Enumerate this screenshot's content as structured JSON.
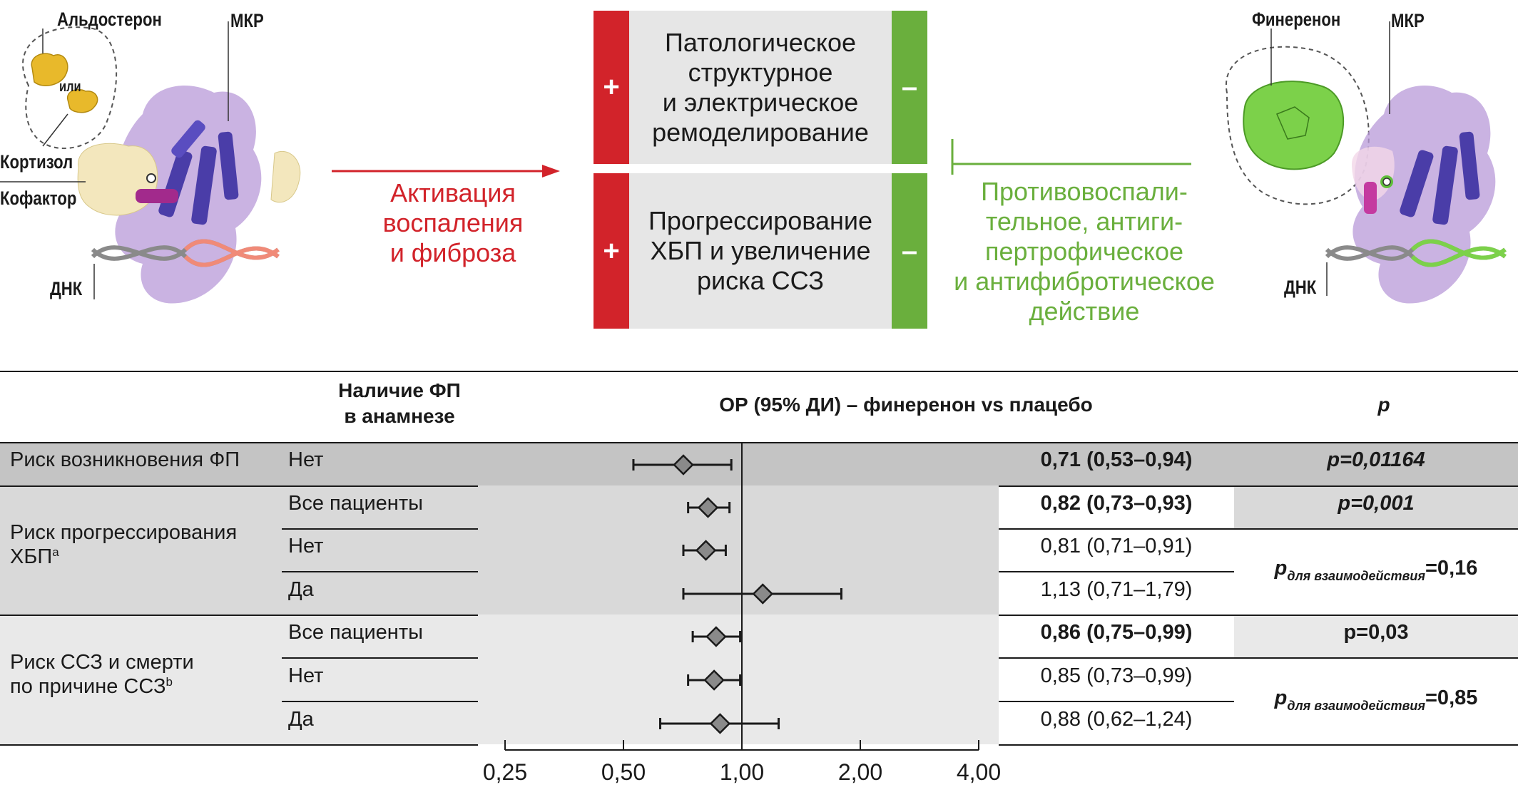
{
  "mechanism": {
    "left_labels": {
      "aldosterone": "Альдостерон",
      "or": "или",
      "cortisol": "Кортизол",
      "cofactor": "Кофактор",
      "dna": "ДНК",
      "mr": "МКР"
    },
    "right_labels": {
      "finerenone": "Финеренон",
      "mr": "МКР",
      "dna": "ДНК"
    },
    "activation_text": "Активация\nвоспаления\nи фиброза",
    "box_top": "Патологическое\nструктурное\nи электрическое\nремоделирование",
    "box_bottom": "Прогрессирование\nХБП и увеличение\nриска ССЗ",
    "plus_sign": "+",
    "minus_sign": "–",
    "inhibition_text": "Противовоспали-\nтельное, антиги-\nпертрофическое\nи антифибротическое\nдействие"
  },
  "table": {
    "header_history": "Наличие ФП\nв анамнезе",
    "header_or": "ОР (95% ДИ) – финеренон vs плацебо",
    "header_p": "p",
    "groups": [
      {
        "label": "Риск возникновения ФП",
        "sup": "",
        "rows": [
          {
            "subgroup": "Нет",
            "or_text": "0,71 (0,53–0,94)",
            "bold": true
          }
        ],
        "p_text": "p=0,01164"
      },
      {
        "label": "Риск прогрессирования\nХБП",
        "sup": "a",
        "rows": [
          {
            "subgroup": "Все пациенты",
            "or_text": "0,82 (0,73–0,93)",
            "bold": true
          },
          {
            "subgroup": "Нет",
            "or_text": "0,81 (0,71–0,91)",
            "bold": false
          },
          {
            "subgroup": "Да",
            "or_text": "1,13 (0,71–1,79)",
            "bold": false
          }
        ],
        "p_main": "p=0,001",
        "p_interaction_prefix": "p",
        "p_interaction_sub": "для взаимодействия",
        "p_interaction_value": "=0,16"
      },
      {
        "label": "Риск ССЗ и смерти\nпо причине ССЗ",
        "sup": "b",
        "rows": [
          {
            "subgroup": "Все пациенты",
            "or_text": "0,86 (0,75–0,99)",
            "bold": true
          },
          {
            "subgroup": "Нет",
            "or_text": "0,85 (0,73–0,99)",
            "bold": false
          },
          {
            "subgroup": "Да",
            "or_text": "0,88 (0,62–1,24)",
            "bold": false
          }
        ],
        "p_main": "p=0,03",
        "p_interaction_prefix": "p",
        "p_interaction_sub": "для взаимодействия",
        "p_interaction_value": "=0,85"
      }
    ]
  },
  "chart_data": {
    "type": "scatter",
    "subtype": "forest-plot",
    "title": "ОР (95% ДИ) – финеренон vs плацебо",
    "xscale": "log",
    "xlim": [
      0.25,
      4.0
    ],
    "xticks": [
      0.25,
      0.5,
      1.0,
      2.0,
      4.0
    ],
    "xtick_labels": [
      "0,25",
      "0,50",
      "1,00",
      "2,00",
      "4,00"
    ],
    "reference_line": 1.0,
    "points": [
      {
        "group": "Риск возникновения ФП",
        "subgroup": "Нет",
        "hr": 0.71,
        "lo": 0.53,
        "hi": 0.94
      },
      {
        "group": "Риск прогрессирования ХБП",
        "subgroup": "Все пациенты",
        "hr": 0.82,
        "lo": 0.73,
        "hi": 0.93
      },
      {
        "group": "Риск прогрессирования ХБП",
        "subgroup": "Нет",
        "hr": 0.81,
        "lo": 0.71,
        "hi": 0.91
      },
      {
        "group": "Риск прогрессирования ХБП",
        "subgroup": "Да",
        "hr": 1.13,
        "lo": 0.71,
        "hi": 1.79
      },
      {
        "group": "Риск ССЗ и смерти по причине ССЗ",
        "subgroup": "Все пациенты",
        "hr": 0.86,
        "lo": 0.75,
        "hi": 0.99
      },
      {
        "group": "Риск ССЗ и смерти по причине ССЗ",
        "subgroup": "Нет",
        "hr": 0.85,
        "lo": 0.73,
        "hi": 0.99
      },
      {
        "group": "Риск ССЗ и смерти по причине ССЗ",
        "subgroup": "Да",
        "hr": 0.88,
        "lo": 0.62,
        "hi": 1.24
      }
    ],
    "colors": {
      "band_dark": "#c4c4c4",
      "band_mid": "#d9d9d9",
      "band_light": "#e9e9e9",
      "marker": "#8a8a8a",
      "red": "#d2232a",
      "green": "#6aaf3d"
    }
  }
}
